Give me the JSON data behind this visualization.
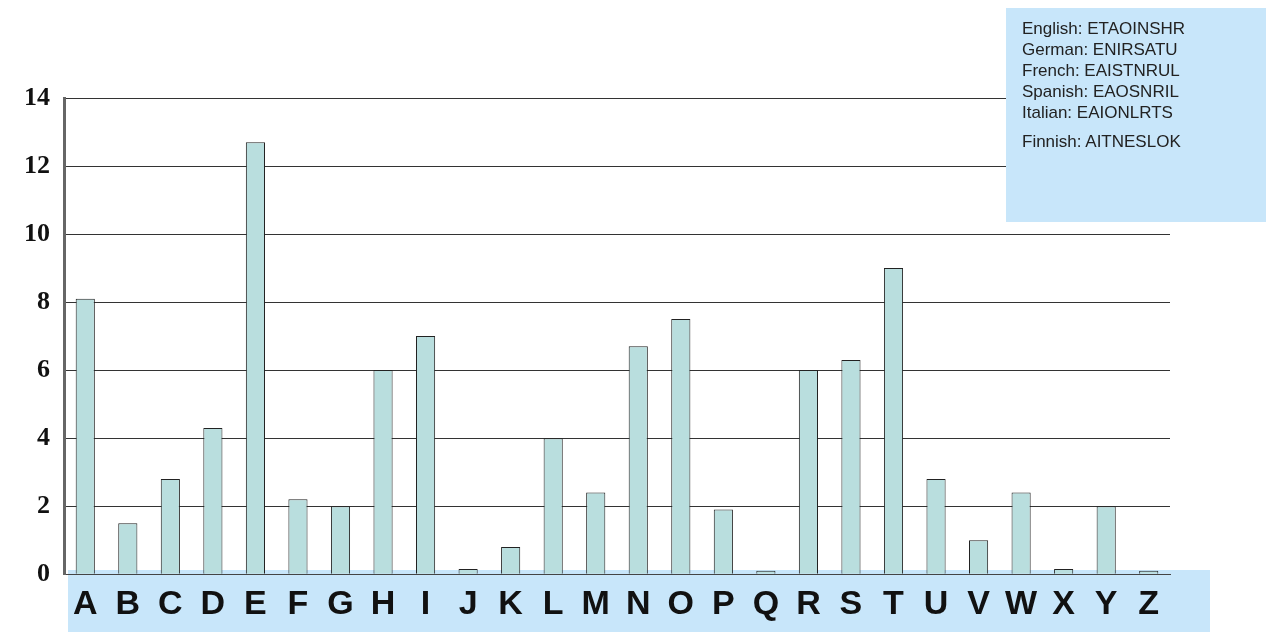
{
  "chart_data": {
    "type": "bar",
    "categories": [
      "A",
      "B",
      "C",
      "D",
      "E",
      "F",
      "G",
      "H",
      "I",
      "J",
      "K",
      "L",
      "M",
      "N",
      "O",
      "P",
      "Q",
      "R",
      "S",
      "T",
      "U",
      "V",
      "W",
      "X",
      "Y",
      "Z"
    ],
    "values": [
      8.1,
      1.5,
      2.8,
      4.3,
      12.7,
      2.2,
      2.0,
      6.0,
      7.0,
      0.15,
      0.8,
      4.0,
      2.4,
      6.7,
      7.5,
      1.9,
      0.1,
      6.0,
      6.3,
      9.0,
      2.8,
      1.0,
      2.4,
      0.15,
      2.0,
      0.1
    ],
    "color": "#b9dede",
    "ylim": [
      0,
      14
    ],
    "yticks": [
      0,
      2,
      4,
      6,
      8,
      10,
      12,
      14
    ],
    "grid": "y",
    "annotations": [
      "English: ETAOINSHR",
      "German: ENIRSATU",
      "French: EAISTNRUL",
      "Spanish: EAOSNRIL",
      "Italian: EAIONLRTS",
      "Finnish: AITNESLOK"
    ]
  }
}
